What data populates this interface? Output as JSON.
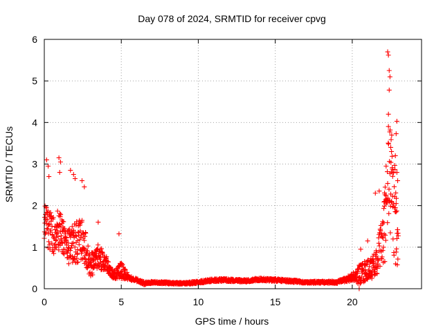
{
  "chart_data": {
    "type": "scatter",
    "title": "Day 078 of 2024, SRMTID for receiver cpvg",
    "xlabel": "GPS time / hours",
    "ylabel": "SRMTID / TECUs",
    "xlim": [
      0,
      24.5
    ],
    "ylim": [
      0,
      6
    ],
    "xticks": [
      0,
      5,
      10,
      15,
      20
    ],
    "yticks": [
      0,
      1,
      2,
      3,
      4,
      5,
      6
    ],
    "grid": true,
    "marker": "+",
    "marker_color": "#ff0000",
    "series": [
      {
        "name": "SRMTID",
        "profile": [
          {
            "t": 0.0,
            "base": 1.5,
            "spread": 0.9
          },
          {
            "t": 0.5,
            "base": 1.2,
            "spread": 1.0
          },
          {
            "t": 1.0,
            "base": 1.3,
            "spread": 1.0
          },
          {
            "t": 1.5,
            "base": 0.9,
            "spread": 0.8
          },
          {
            "t": 2.0,
            "base": 1.0,
            "spread": 1.0
          },
          {
            "t": 2.5,
            "base": 1.1,
            "spread": 1.0
          },
          {
            "t": 3.0,
            "base": 0.5,
            "spread": 0.6
          },
          {
            "t": 3.5,
            "base": 0.7,
            "spread": 0.6
          },
          {
            "t": 4.0,
            "base": 0.6,
            "spread": 0.4
          },
          {
            "t": 4.5,
            "base": 0.3,
            "spread": 0.2
          },
          {
            "t": 5.0,
            "base": 0.4,
            "spread": 0.4
          },
          {
            "t": 5.5,
            "base": 0.25,
            "spread": 0.1
          },
          {
            "t": 6.0,
            "base": 0.2,
            "spread": 0.08
          },
          {
            "t": 6.5,
            "base": 0.12,
            "spread": 0.08
          },
          {
            "t": 7.0,
            "base": 0.15,
            "spread": 0.05
          },
          {
            "t": 9.0,
            "base": 0.12,
            "spread": 0.05
          },
          {
            "t": 10.0,
            "base": 0.15,
            "spread": 0.06
          },
          {
            "t": 11.0,
            "base": 0.2,
            "spread": 0.07
          },
          {
            "t": 12.0,
            "base": 0.2,
            "spread": 0.07
          },
          {
            "t": 13.0,
            "base": 0.18,
            "spread": 0.06
          },
          {
            "t": 14.0,
            "base": 0.22,
            "spread": 0.07
          },
          {
            "t": 15.0,
            "base": 0.2,
            "spread": 0.07
          },
          {
            "t": 16.0,
            "base": 0.18,
            "spread": 0.06
          },
          {
            "t": 17.0,
            "base": 0.15,
            "spread": 0.05
          },
          {
            "t": 18.0,
            "base": 0.15,
            "spread": 0.05
          },
          {
            "t": 19.0,
            "base": 0.15,
            "spread": 0.06
          },
          {
            "t": 19.5,
            "base": 0.2,
            "spread": 0.1
          },
          {
            "t": 20.0,
            "base": 0.25,
            "spread": 0.2
          },
          {
            "t": 20.5,
            "base": 0.3,
            "spread": 0.5
          },
          {
            "t": 21.0,
            "base": 0.4,
            "spread": 0.5
          },
          {
            "t": 21.5,
            "base": 0.5,
            "spread": 0.6
          },
          {
            "t": 22.0,
            "base": 1.0,
            "spread": 1.5
          },
          {
            "t": 22.4,
            "base": 2.5,
            "spread": 3.0
          },
          {
            "t": 22.8,
            "base": 1.5,
            "spread": 2.5
          },
          {
            "t": 23.0,
            "base": 0.8,
            "spread": 0.8
          }
        ],
        "points_per_hour": 80,
        "spikes": [
          {
            "x": 0.15,
            "y": 3.1
          },
          {
            "x": 0.25,
            "y": 2.95
          },
          {
            "x": 0.3,
            "y": 2.7
          },
          {
            "x": 0.95,
            "y": 3.15
          },
          {
            "x": 1.05,
            "y": 3.05
          },
          {
            "x": 1.0,
            "y": 2.8
          },
          {
            "x": 1.7,
            "y": 2.85
          },
          {
            "x": 1.9,
            "y": 2.75
          },
          {
            "x": 2.0,
            "y": 2.65
          },
          {
            "x": 2.45,
            "y": 2.6
          },
          {
            "x": 2.6,
            "y": 2.45
          },
          {
            "x": 3.5,
            "y": 1.6
          },
          {
            "x": 4.85,
            "y": 1.32
          },
          {
            "x": 22.3,
            "y": 5.7
          },
          {
            "x": 22.35,
            "y": 5.62
          },
          {
            "x": 22.4,
            "y": 5.25
          },
          {
            "x": 22.45,
            "y": 5.1
          },
          {
            "x": 22.4,
            "y": 4.78
          },
          {
            "x": 22.35,
            "y": 4.2
          },
          {
            "x": 22.9,
            "y": 4.03
          },
          {
            "x": 22.85,
            "y": 3.73
          },
          {
            "x": 22.5,
            "y": 3.4
          },
          {
            "x": 22.55,
            "y": 3.3
          },
          {
            "x": 22.8,
            "y": 3.2
          },
          {
            "x": 22.2,
            "y": 2.95
          },
          {
            "x": 22.6,
            "y": 2.88
          },
          {
            "x": 22.9,
            "y": 2.8
          },
          {
            "x": 22.95,
            "y": 2.6
          },
          {
            "x": 21.75,
            "y": 2.35
          },
          {
            "x": 21.5,
            "y": 2.3
          },
          {
            "x": 22.1,
            "y": 2.1
          },
          {
            "x": 22.85,
            "y": 2.05
          },
          {
            "x": 20.55,
            "y": 0.95
          },
          {
            "x": 21.0,
            "y": 1.15
          },
          {
            "x": 20.45,
            "y": 0.0
          }
        ]
      }
    ]
  }
}
